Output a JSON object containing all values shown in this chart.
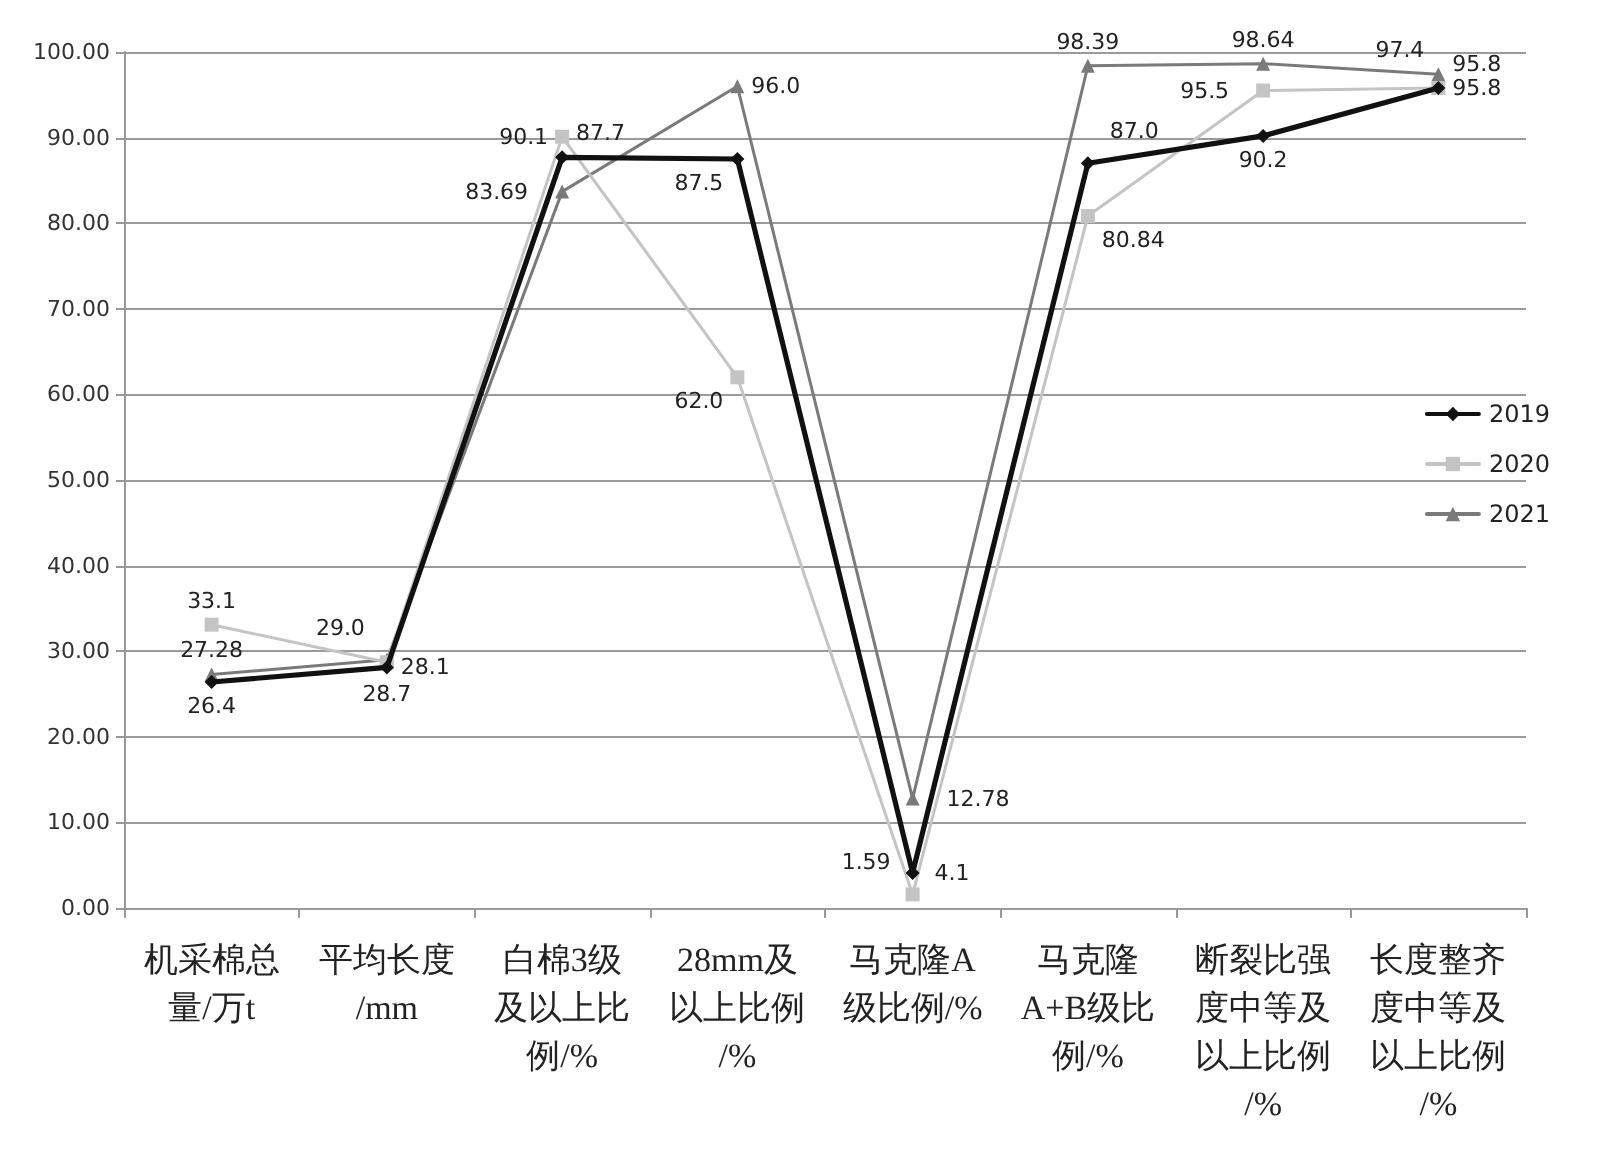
{
  "chart_data": {
    "type": "line",
    "categories": [
      "机采棉总量/万t",
      "平均长度/mm",
      "白棉3级及以上比例/%",
      "28mm及以上比例/%",
      "马克隆A级比例/%",
      "马克隆A+B级比例/%",
      "断裂比强度中等及以上比例/%",
      "长度整齐度中等及以上比例/%"
    ],
    "series": [
      {
        "name": "2019",
        "color": "#111111",
        "marker": "diamond",
        "values": [
          26.4,
          28.1,
          87.7,
          87.5,
          4.1,
          87.0,
          90.2,
          95.8
        ],
        "value_labels": [
          "26.4",
          "28.1",
          "87.7",
          "87.5",
          "4.1",
          "87.0",
          "90.2",
          "95.8"
        ]
      },
      {
        "name": "2020",
        "color": "#c4c4c4",
        "marker": "square",
        "values": [
          33.1,
          28.7,
          90.1,
          62.0,
          1.59,
          80.84,
          95.5,
          95.8
        ],
        "value_labels": [
          "33.1",
          "28.7",
          "90.1",
          "62.0",
          "1.59",
          "80.84",
          "95.5",
          "95.8"
        ]
      },
      {
        "name": "2021",
        "color": "#7a7a7a",
        "marker": "triangle",
        "values": [
          27.28,
          29.0,
          83.69,
          96.0,
          12.78,
          98.39,
          98.64,
          97.4
        ],
        "value_labels": [
          "27.28",
          "29.0",
          "83.69",
          "96.0",
          "12.78",
          "98.39",
          "98.64",
          "97.4"
        ]
      }
    ],
    "ylim": [
      0,
      100
    ],
    "yticks": [
      {
        "value": 0,
        "label": "0.00"
      },
      {
        "value": 10,
        "label": "10.00"
      },
      {
        "value": 20,
        "label": "20.00"
      },
      {
        "value": 30,
        "label": "30.00"
      },
      {
        "value": 40,
        "label": "40.00"
      },
      {
        "value": 50,
        "label": "50.00"
      },
      {
        "value": 60,
        "label": "60.00"
      },
      {
        "value": 70,
        "label": "70.00"
      },
      {
        "value": 80,
        "label": "80.00"
      },
      {
        "value": 90,
        "label": "90.00"
      },
      {
        "value": 100,
        "label": "100.00"
      }
    ],
    "grid": "y",
    "legend": "right"
  }
}
